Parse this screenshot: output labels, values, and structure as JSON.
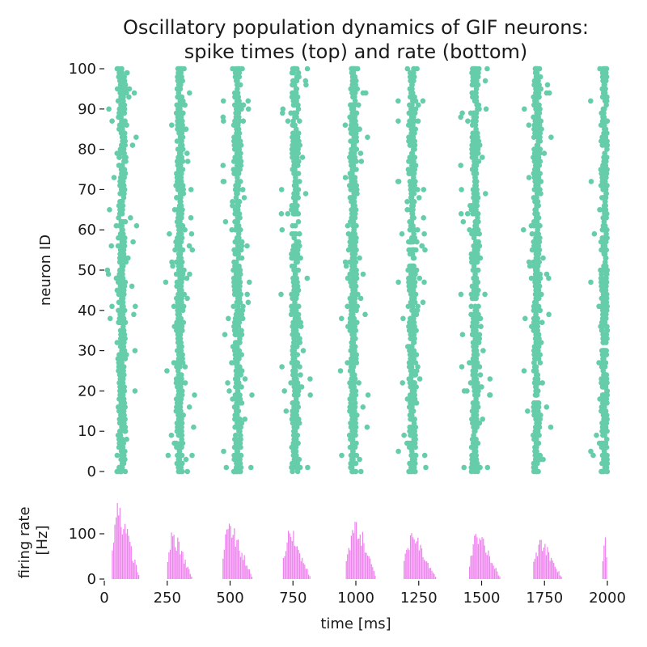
{
  "title_line1": "Oscillatory population dynamics of GIF neurons:",
  "title_line2": "spike times (top) and rate (bottom)",
  "chart_data": [
    {
      "type": "scatter",
      "name": "raster",
      "ylabel": "neuron ID",
      "xlim": [
        0,
        2000
      ],
      "ylim": [
        0,
        100
      ],
      "yticks": [
        0,
        10,
        20,
        30,
        40,
        50,
        60,
        70,
        80,
        90,
        100
      ],
      "point_color": "#66cdaa",
      "neurons": 100,
      "burst_centers_ms": [
        70,
        300,
        530,
        760,
        990,
        1225,
        1475,
        1720,
        1990
      ],
      "burst_width_ms": 80,
      "grid": false
    },
    {
      "type": "bar",
      "name": "firing-rate",
      "ylabel": "firing rate\n[Hz]",
      "xlabel": "time [ms]",
      "xlim": [
        0,
        2000
      ],
      "ylim": [
        0,
        180
      ],
      "yticks": [
        0,
        100
      ],
      "xticks": [
        0,
        250,
        500,
        750,
        1000,
        1250,
        1500,
        1750,
        2000
      ],
      "bar_color": "#ee82ee",
      "bin_ms": 5,
      "bursts": [
        {
          "start": 30,
          "peak": 45,
          "end": 140,
          "max": 170
        },
        {
          "start": 250,
          "peak": 265,
          "end": 350,
          "max": 105
        },
        {
          "start": 470,
          "peak": 490,
          "end": 590,
          "max": 125
        },
        {
          "start": 710,
          "peak": 730,
          "end": 820,
          "max": 110
        },
        {
          "start": 960,
          "peak": 995,
          "end": 1080,
          "max": 130
        },
        {
          "start": 1190,
          "peak": 1220,
          "end": 1320,
          "max": 105
        },
        {
          "start": 1450,
          "peak": 1480,
          "end": 1575,
          "max": 100
        },
        {
          "start": 1705,
          "peak": 1730,
          "end": 1820,
          "max": 90
        },
        {
          "start": 1980,
          "peak": 1990,
          "end": 2000,
          "max": 100
        }
      ],
      "grid": false
    }
  ]
}
